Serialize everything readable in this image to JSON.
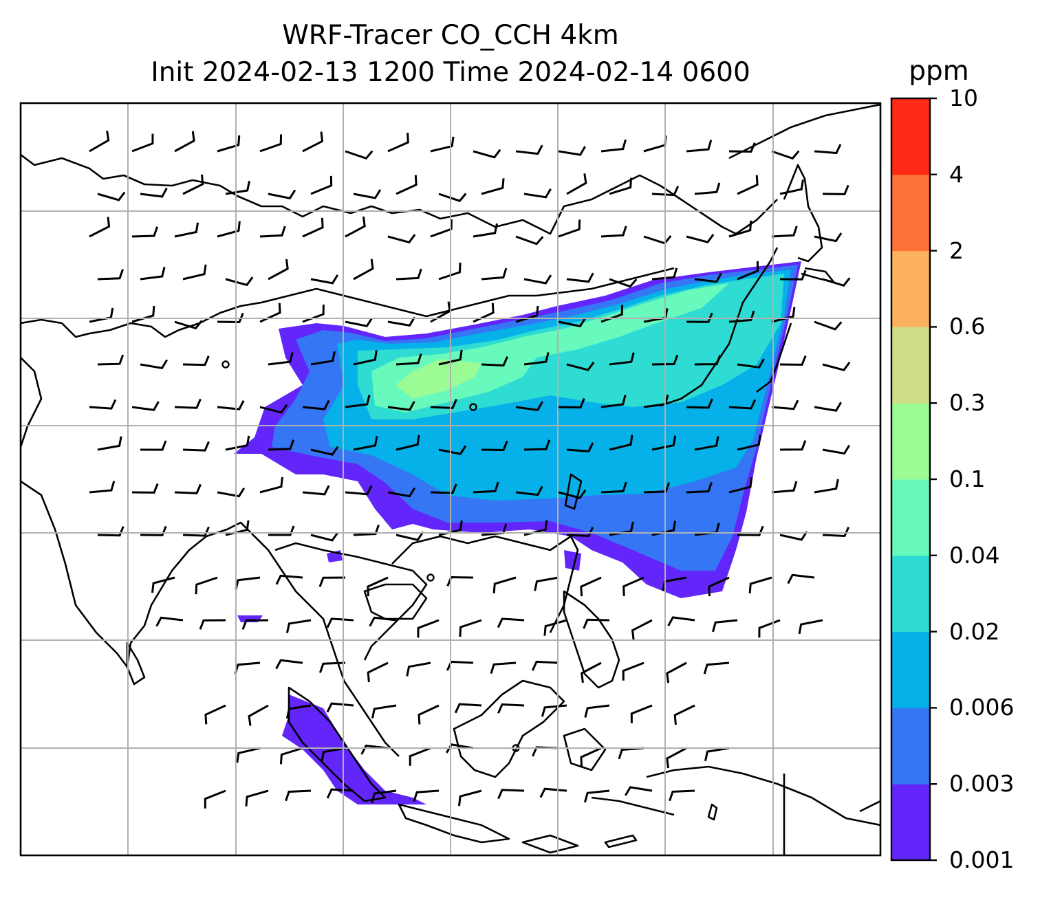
{
  "title": {
    "line1": "WRF-Tracer CO_CCH 4km",
    "line2": "Init 2024-02-13 1200 Time 2024-02-14 0600"
  },
  "colorbar": {
    "unit": "ppm",
    "ticks": [
      "0.001",
      "0.003",
      "0.006",
      "0.02",
      "0.04",
      "0.1",
      "0.3",
      "0.6",
      "2",
      "4",
      "10"
    ],
    "colors": [
      "#6226fb",
      "#3576f4",
      "#05b1e8",
      "#2fdcd3",
      "#68f9bc",
      "#9bfb94",
      "#cede88",
      "#fcb15f",
      "#fe7138",
      "#fe2a16"
    ]
  },
  "map": {
    "field": "CO_CCH tracer concentration (filled contours) with wind barbs",
    "gridlines": true,
    "coastlines": true
  }
}
